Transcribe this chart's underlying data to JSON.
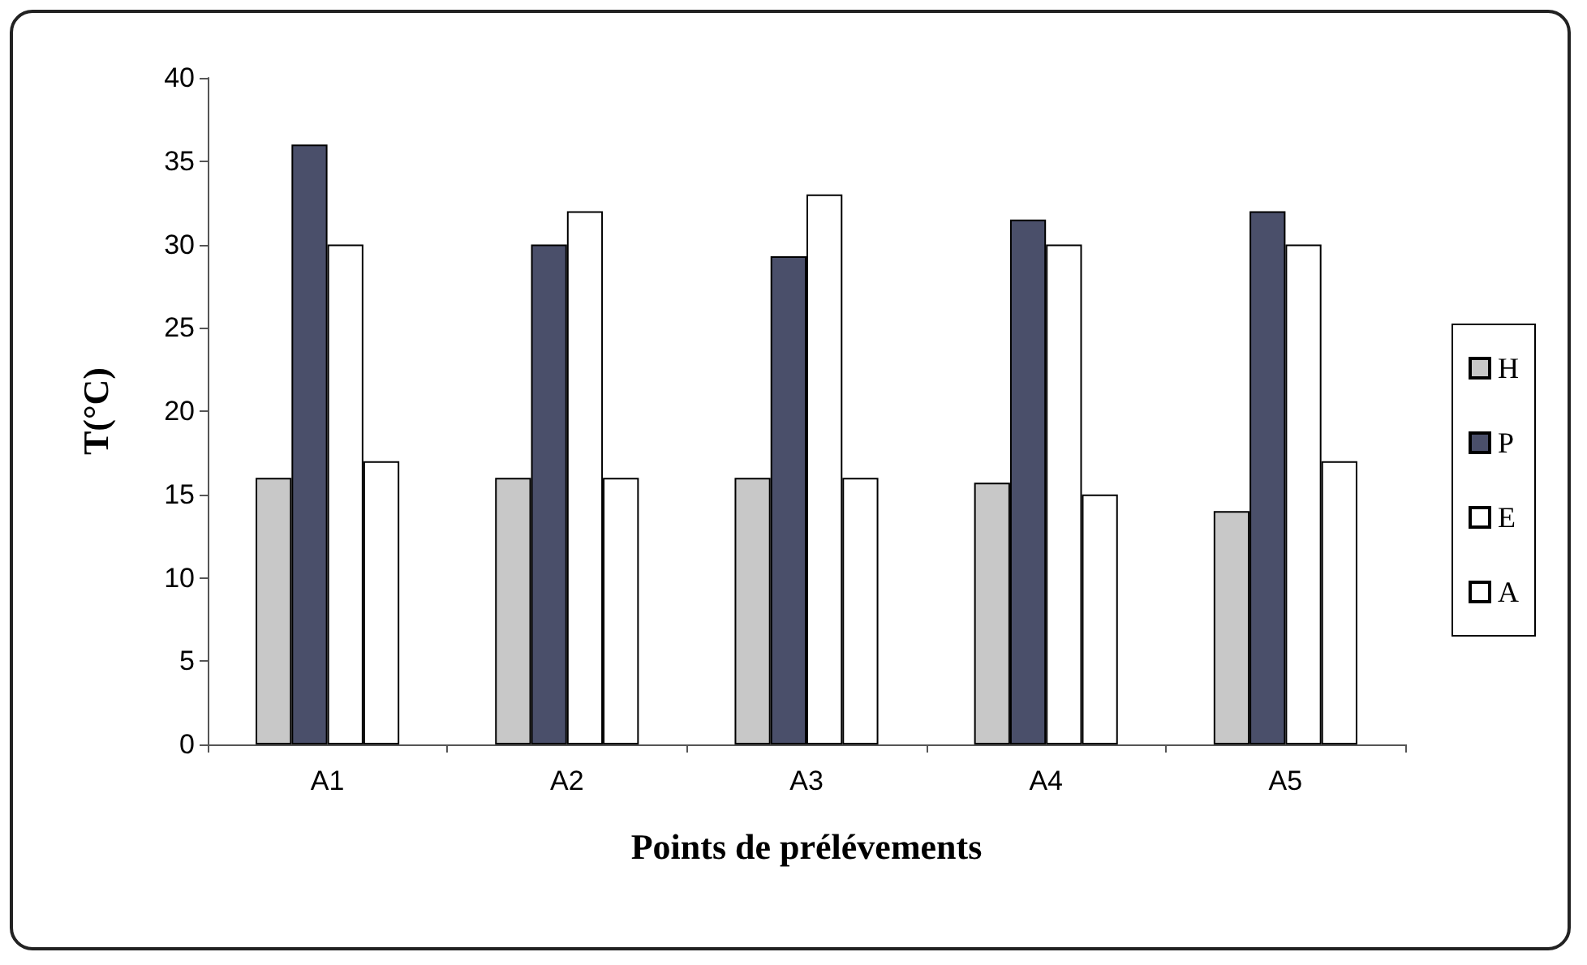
{
  "chart_data": {
    "type": "bar",
    "xlabel": "Points de prélévements",
    "ylabel": "T(°C)",
    "categories": [
      "A1",
      "A2",
      "A3",
      "A4",
      "A5"
    ],
    "series": [
      {
        "name": "H",
        "color": "#c8c8c8",
        "values": [
          16,
          16,
          16,
          15.7,
          14
        ]
      },
      {
        "name": "P",
        "color": "#4a4f6a",
        "values": [
          36,
          30,
          29.3,
          31.5,
          32
        ]
      },
      {
        "name": "E",
        "color": "#ffffff",
        "values": [
          30,
          32,
          33,
          30,
          30
        ]
      },
      {
        "name": "A",
        "color": "#ffffff",
        "values": [
          17,
          16,
          16,
          15,
          17
        ]
      }
    ],
    "ylim": [
      0,
      40
    ],
    "yticks": [
      0,
      5,
      10,
      15,
      20,
      25,
      30,
      35,
      40
    ],
    "grid": false,
    "legend": "right"
  }
}
